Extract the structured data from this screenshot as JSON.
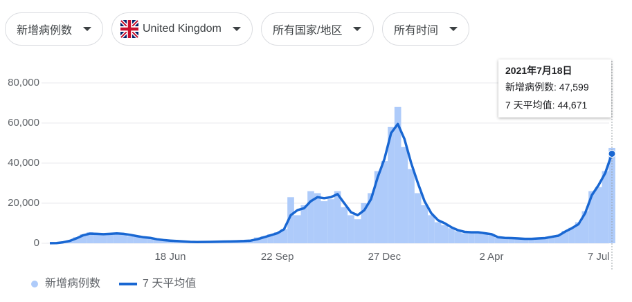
{
  "filters": [
    "新增病例数",
    "United Kingdom",
    "所有国家/地区",
    "所有时间"
  ],
  "chart_data": {
    "type": "bar",
    "categories": [
      null,
      null,
      null,
      null,
      null,
      null,
      null,
      null,
      null,
      null,
      null,
      null,
      null,
      null,
      null,
      null,
      null,
      null,
      "18 Jun",
      null,
      null,
      null,
      null,
      null,
      null,
      null,
      null,
      null,
      null,
      null,
      null,
      null,
      null,
      null,
      "22 Sep",
      null,
      null,
      null,
      null,
      null,
      null,
      null,
      null,
      null,
      null,
      null,
      null,
      null,
      null,
      null,
      "27 Dec",
      null,
      null,
      null,
      null,
      null,
      null,
      null,
      null,
      null,
      null,
      null,
      null,
      null,
      null,
      null,
      "2 Apr",
      null,
      null,
      null,
      null,
      null,
      null,
      null,
      null,
      null,
      null,
      null,
      null,
      null,
      null,
      null,
      "7 Jul",
      null,
      null
    ],
    "series": [
      {
        "name": "新增病例数",
        "type": "bar",
        "color": "#aecbfa",
        "values": [
          40,
          150,
          600,
          1500,
          3000,
          4500,
          5500,
          4800,
          4300,
          5000,
          4800,
          4600,
          3500,
          3200,
          2500,
          2400,
          1700,
          1400,
          1200,
          1000,
          800,
          600,
          700,
          750,
          800,
          850,
          900,
          1000,
          1100,
          1200,
          1600,
          2900,
          3500,
          4500,
          5500,
          7100,
          23000,
          14000,
          19000,
          26000,
          25000,
          21000,
          22000,
          26000,
          18000,
          14000,
          12000,
          20000,
          25000,
          36000,
          41000,
          58000,
          68000,
          48000,
          37000,
          25000,
          19000,
          14000,
          10500,
          9000,
          7500,
          6000,
          5000,
          6000,
          5000,
          4500,
          4000,
          2700,
          2600,
          2500,
          2200,
          2000,
          2300,
          2200,
          2700,
          3500,
          4000,
          6200,
          7700,
          10500,
          16000,
          26000,
          28000,
          36000,
          47599
        ]
      },
      {
        "name": "7 天平均值",
        "type": "line",
        "color": "#1967d2",
        "values": [
          50,
          100,
          500,
          1200,
          2500,
          4000,
          4800,
          4700,
          4500,
          4700,
          4900,
          4700,
          4200,
          3600,
          3000,
          2700,
          2000,
          1600,
          1300,
          1100,
          900,
          700,
          600,
          650,
          700,
          800,
          850,
          900,
          1000,
          1100,
          1300,
          2000,
          3000,
          4000,
          5000,
          7000,
          14000,
          16500,
          17500,
          21000,
          23000,
          22500,
          23000,
          24500,
          20000,
          15500,
          14000,
          16500,
          22000,
          33000,
          42000,
          55000,
          59500,
          52000,
          40000,
          30000,
          21000,
          15000,
          11500,
          10000,
          8000,
          6500,
          5700,
          5500,
          5500,
          5000,
          4500,
          3000,
          2700,
          2600,
          2400,
          2200,
          2200,
          2400,
          2600,
          3200,
          3800,
          5800,
          7500,
          9500,
          15000,
          24000,
          29000,
          35000,
          44671
        ]
      }
    ],
    "ylim": [
      0,
      80000
    ],
    "yticks": [
      0,
      {
        "value": 20000,
        "label": "20,000"
      },
      {
        "value": 40000,
        "label": "40,000"
      },
      {
        "value": 60000,
        "label": "60,000"
      },
      {
        "value": 80000,
        "label": "80,000"
      }
    ],
    "grid": true,
    "legend": "bottom",
    "tooltip": {
      "title": "2021年7月18日",
      "lines": [
        "新增病例数: 47,599",
        "7 天平均值: 44,671"
      ]
    }
  }
}
